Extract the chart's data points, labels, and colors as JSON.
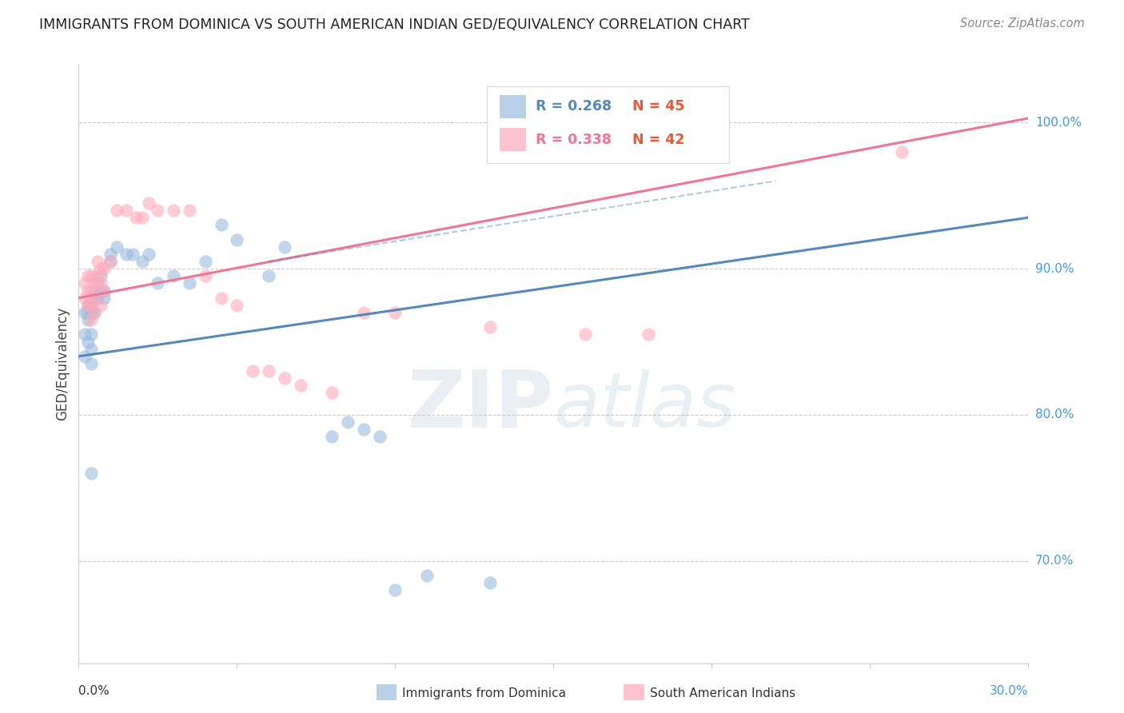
{
  "title": "IMMIGRANTS FROM DOMINICA VS SOUTH AMERICAN INDIAN GED/EQUIVALENCY CORRELATION CHART",
  "source": "Source: ZipAtlas.com",
  "ylabel": "GED/Equivalency",
  "ylabel_right_ticks": [
    "100.0%",
    "90.0%",
    "80.0%",
    "70.0%"
  ],
  "ylabel_right_values": [
    1.0,
    0.9,
    0.8,
    0.7
  ],
  "xlim": [
    0.0,
    0.3
  ],
  "ylim": [
    0.63,
    1.04
  ],
  "watermark_zip": "ZIP",
  "watermark_atlas": "atlas",
  "legend": {
    "series1_label": "Immigrants from Dominica",
    "series2_label": "South American Indians",
    "R1": "0.268",
    "N1": "45",
    "R2": "0.338",
    "N2": "42"
  },
  "blue_color": "#99BBDD",
  "pink_color": "#FFAABB",
  "blue_line_color": "#5588BB",
  "pink_line_color": "#EE7799",
  "blue_scatter": [
    [
      0.002,
      0.87
    ],
    [
      0.002,
      0.855
    ],
    [
      0.002,
      0.84
    ],
    [
      0.003,
      0.875
    ],
    [
      0.003,
      0.87
    ],
    [
      0.003,
      0.865
    ],
    [
      0.003,
      0.85
    ],
    [
      0.004,
      0.88
    ],
    [
      0.004,
      0.875
    ],
    [
      0.004,
      0.87
    ],
    [
      0.004,
      0.855
    ],
    [
      0.004,
      0.845
    ],
    [
      0.004,
      0.835
    ],
    [
      0.004,
      0.76
    ],
    [
      0.005,
      0.885
    ],
    [
      0.005,
      0.88
    ],
    [
      0.005,
      0.87
    ],
    [
      0.006,
      0.89
    ],
    [
      0.006,
      0.88
    ],
    [
      0.007,
      0.895
    ],
    [
      0.007,
      0.885
    ],
    [
      0.008,
      0.885
    ],
    [
      0.008,
      0.88
    ],
    [
      0.01,
      0.91
    ],
    [
      0.01,
      0.905
    ],
    [
      0.012,
      0.915
    ],
    [
      0.015,
      0.91
    ],
    [
      0.017,
      0.91
    ],
    [
      0.02,
      0.905
    ],
    [
      0.022,
      0.91
    ],
    [
      0.025,
      0.89
    ],
    [
      0.03,
      0.895
    ],
    [
      0.035,
      0.89
    ],
    [
      0.04,
      0.905
    ],
    [
      0.045,
      0.93
    ],
    [
      0.05,
      0.92
    ],
    [
      0.06,
      0.895
    ],
    [
      0.065,
      0.915
    ],
    [
      0.08,
      0.785
    ],
    [
      0.085,
      0.795
    ],
    [
      0.09,
      0.79
    ],
    [
      0.095,
      0.785
    ],
    [
      0.1,
      0.68
    ],
    [
      0.11,
      0.69
    ],
    [
      0.13,
      0.685
    ]
  ],
  "pink_scatter": [
    [
      0.002,
      0.89
    ],
    [
      0.002,
      0.88
    ],
    [
      0.003,
      0.895
    ],
    [
      0.003,
      0.885
    ],
    [
      0.003,
      0.875
    ],
    [
      0.004,
      0.895
    ],
    [
      0.004,
      0.885
    ],
    [
      0.004,
      0.875
    ],
    [
      0.004,
      0.865
    ],
    [
      0.005,
      0.89
    ],
    [
      0.005,
      0.88
    ],
    [
      0.005,
      0.87
    ],
    [
      0.006,
      0.905
    ],
    [
      0.006,
      0.895
    ],
    [
      0.007,
      0.9
    ],
    [
      0.007,
      0.89
    ],
    [
      0.007,
      0.875
    ],
    [
      0.008,
      0.9
    ],
    [
      0.008,
      0.885
    ],
    [
      0.01,
      0.905
    ],
    [
      0.012,
      0.94
    ],
    [
      0.015,
      0.94
    ],
    [
      0.018,
      0.935
    ],
    [
      0.02,
      0.935
    ],
    [
      0.022,
      0.945
    ],
    [
      0.025,
      0.94
    ],
    [
      0.03,
      0.94
    ],
    [
      0.035,
      0.94
    ],
    [
      0.04,
      0.895
    ],
    [
      0.045,
      0.88
    ],
    [
      0.05,
      0.875
    ],
    [
      0.055,
      0.83
    ],
    [
      0.06,
      0.83
    ],
    [
      0.065,
      0.825
    ],
    [
      0.07,
      0.82
    ],
    [
      0.08,
      0.815
    ],
    [
      0.09,
      0.87
    ],
    [
      0.1,
      0.87
    ],
    [
      0.13,
      0.86
    ],
    [
      0.16,
      0.855
    ],
    [
      0.18,
      0.855
    ],
    [
      0.26,
      0.98
    ]
  ],
  "blue_line": {
    "x0": 0.0,
    "y0": 0.84,
    "x1": 0.3,
    "y1": 0.935
  },
  "pink_line": {
    "x0": 0.0,
    "y0": 0.88,
    "x1": 0.3,
    "y1": 1.003
  },
  "dashed_line": {
    "x0": 0.06,
    "y0": 0.905,
    "x1": 0.22,
    "y1": 0.96
  },
  "gridline_y": [
    0.7,
    0.8,
    0.9,
    1.0
  ],
  "bg_color": "#FFFFFF"
}
